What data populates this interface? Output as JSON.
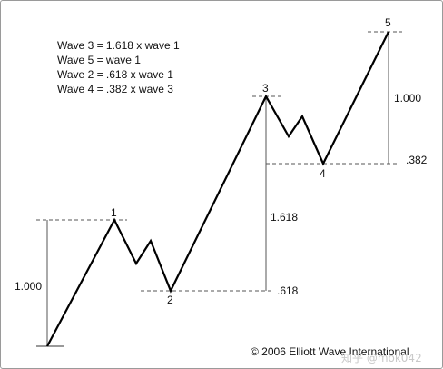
{
  "rules": [
    "Wave 3 = 1.618 x wave 1",
    "Wave 5 = wave 1",
    "Wave 2 = .618 x wave 1",
    "Wave 4 = .382 x wave 3"
  ],
  "wave_labels": [
    "1",
    "2",
    "3",
    "4",
    "5"
  ],
  "ratios": {
    "wave1": "1.000",
    "wave2": ".618",
    "wave3": "1.618",
    "wave4": ".382",
    "wave5": "1.000"
  },
  "copyright": "© 2006 Elliott Wave International",
  "watermark": "知乎 @mok042"
}
